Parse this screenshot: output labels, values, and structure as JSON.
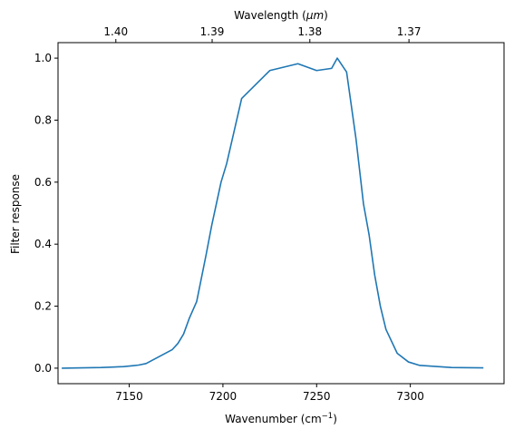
{
  "chart_data": {
    "type": "line",
    "xlabel": "Wavenumber (cm",
    "xlabel_superscript": "−1",
    "xlabel_suffix": ")",
    "ylabel": "Filter response",
    "top_xlabel": "Wavelength (",
    "top_xlabel_unit": "μm",
    "top_xlabel_suffix": ")",
    "xlim": [
      7112,
      7350
    ],
    "ylim": [
      -0.05,
      1.05
    ],
    "grid": false,
    "line_color": "#1f77b4",
    "x_ticks": [
      {
        "value": 7150,
        "label": "7150"
      },
      {
        "value": 7200,
        "label": "7200"
      },
      {
        "value": 7250,
        "label": "7250"
      },
      {
        "value": 7300,
        "label": "7300"
      }
    ],
    "y_ticks": [
      {
        "value": 0.0,
        "label": "0.0"
      },
      {
        "value": 0.2,
        "label": "0.2"
      },
      {
        "value": 0.4,
        "label": "0.4"
      },
      {
        "value": 0.6,
        "label": "0.6"
      },
      {
        "value": 0.8,
        "label": "0.8"
      },
      {
        "value": 1.0,
        "label": "1.0"
      }
    ],
    "top_ticks": [
      {
        "value": 1.4,
        "label": "1.40"
      },
      {
        "value": 1.39,
        "label": "1.39"
      },
      {
        "value": 1.38,
        "label": "1.38"
      },
      {
        "value": 1.37,
        "label": "1.37"
      }
    ],
    "series": [
      {
        "x": [
          7114,
          7135,
          7147,
          7152,
          7155,
          7159,
          7173,
          7176,
          7179,
          7182,
          7186,
          7191,
          7194,
          7199,
          7202,
          7210,
          7225,
          7240,
          7250,
          7258,
          7261,
          7266,
          7271,
          7275,
          7278,
          7281,
          7284,
          7287,
          7293,
          7299,
          7305,
          7322,
          7339
        ],
        "y": [
          0.0,
          0.002,
          0.005,
          0.008,
          0.01,
          0.015,
          0.06,
          0.08,
          0.11,
          0.16,
          0.215,
          0.365,
          0.46,
          0.6,
          0.66,
          0.87,
          0.96,
          0.982,
          0.96,
          0.967,
          1.0,
          0.955,
          0.74,
          0.53,
          0.43,
          0.3,
          0.2,
          0.125,
          0.048,
          0.02,
          0.009,
          0.002,
          0.001
        ]
      }
    ]
  }
}
